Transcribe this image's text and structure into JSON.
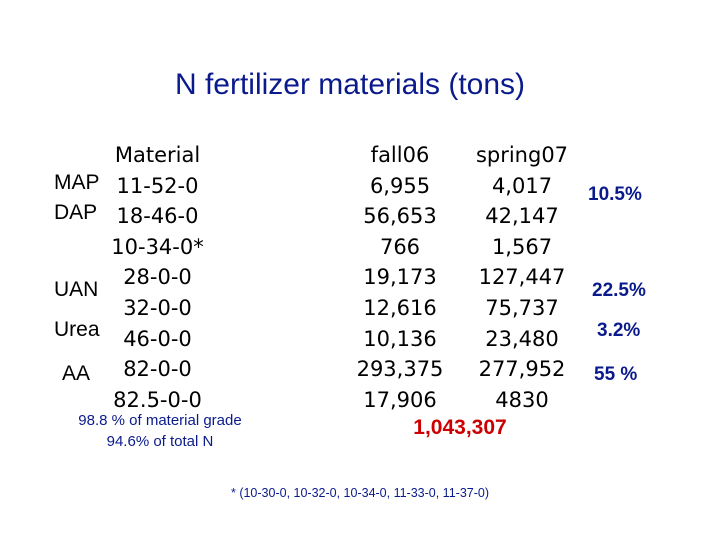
{
  "title": "N fertilizer materials (tons)",
  "columns": {
    "material_header": "Material",
    "fall_header": "fall06",
    "spring_header": "spring07"
  },
  "rows": [
    {
      "material": "11-52-0",
      "fall": "6,955",
      "spring": "4,017"
    },
    {
      "material": "18-46-0",
      "fall": "56,653",
      "spring": "42,147"
    },
    {
      "material": "10-34-0*",
      "fall": "766",
      "spring": "1,567"
    },
    {
      "material": "28-0-0",
      "fall": "19,173",
      "spring": "127,447"
    },
    {
      "material": "32-0-0",
      "fall": "12,616",
      "spring": "75,737"
    },
    {
      "material": "46-0-0",
      "fall": "10,136",
      "spring": "23,480"
    },
    {
      "material": "82-0-0",
      "fall": "293,375",
      "spring": "277,952"
    },
    {
      "material": "82.5-0-0",
      "fall": "17,906",
      "spring": "4830"
    }
  ],
  "groups": {
    "map": "MAP",
    "dap": "DAP",
    "uan": "UAN",
    "urea": "Urea",
    "aa": "AA"
  },
  "percentages": {
    "phosphate": "10.5%",
    "uan": "22.5%",
    "urea": "3.2%",
    "aa": "55 %"
  },
  "notes": {
    "line1": "98.8 % of material grade",
    "line2": "94.6% of total N"
  },
  "total": "1,043,307",
  "footnote": "* (10-30-0, 10-32-0, 10-34-0, 11-33-0, 11-37-0)"
}
